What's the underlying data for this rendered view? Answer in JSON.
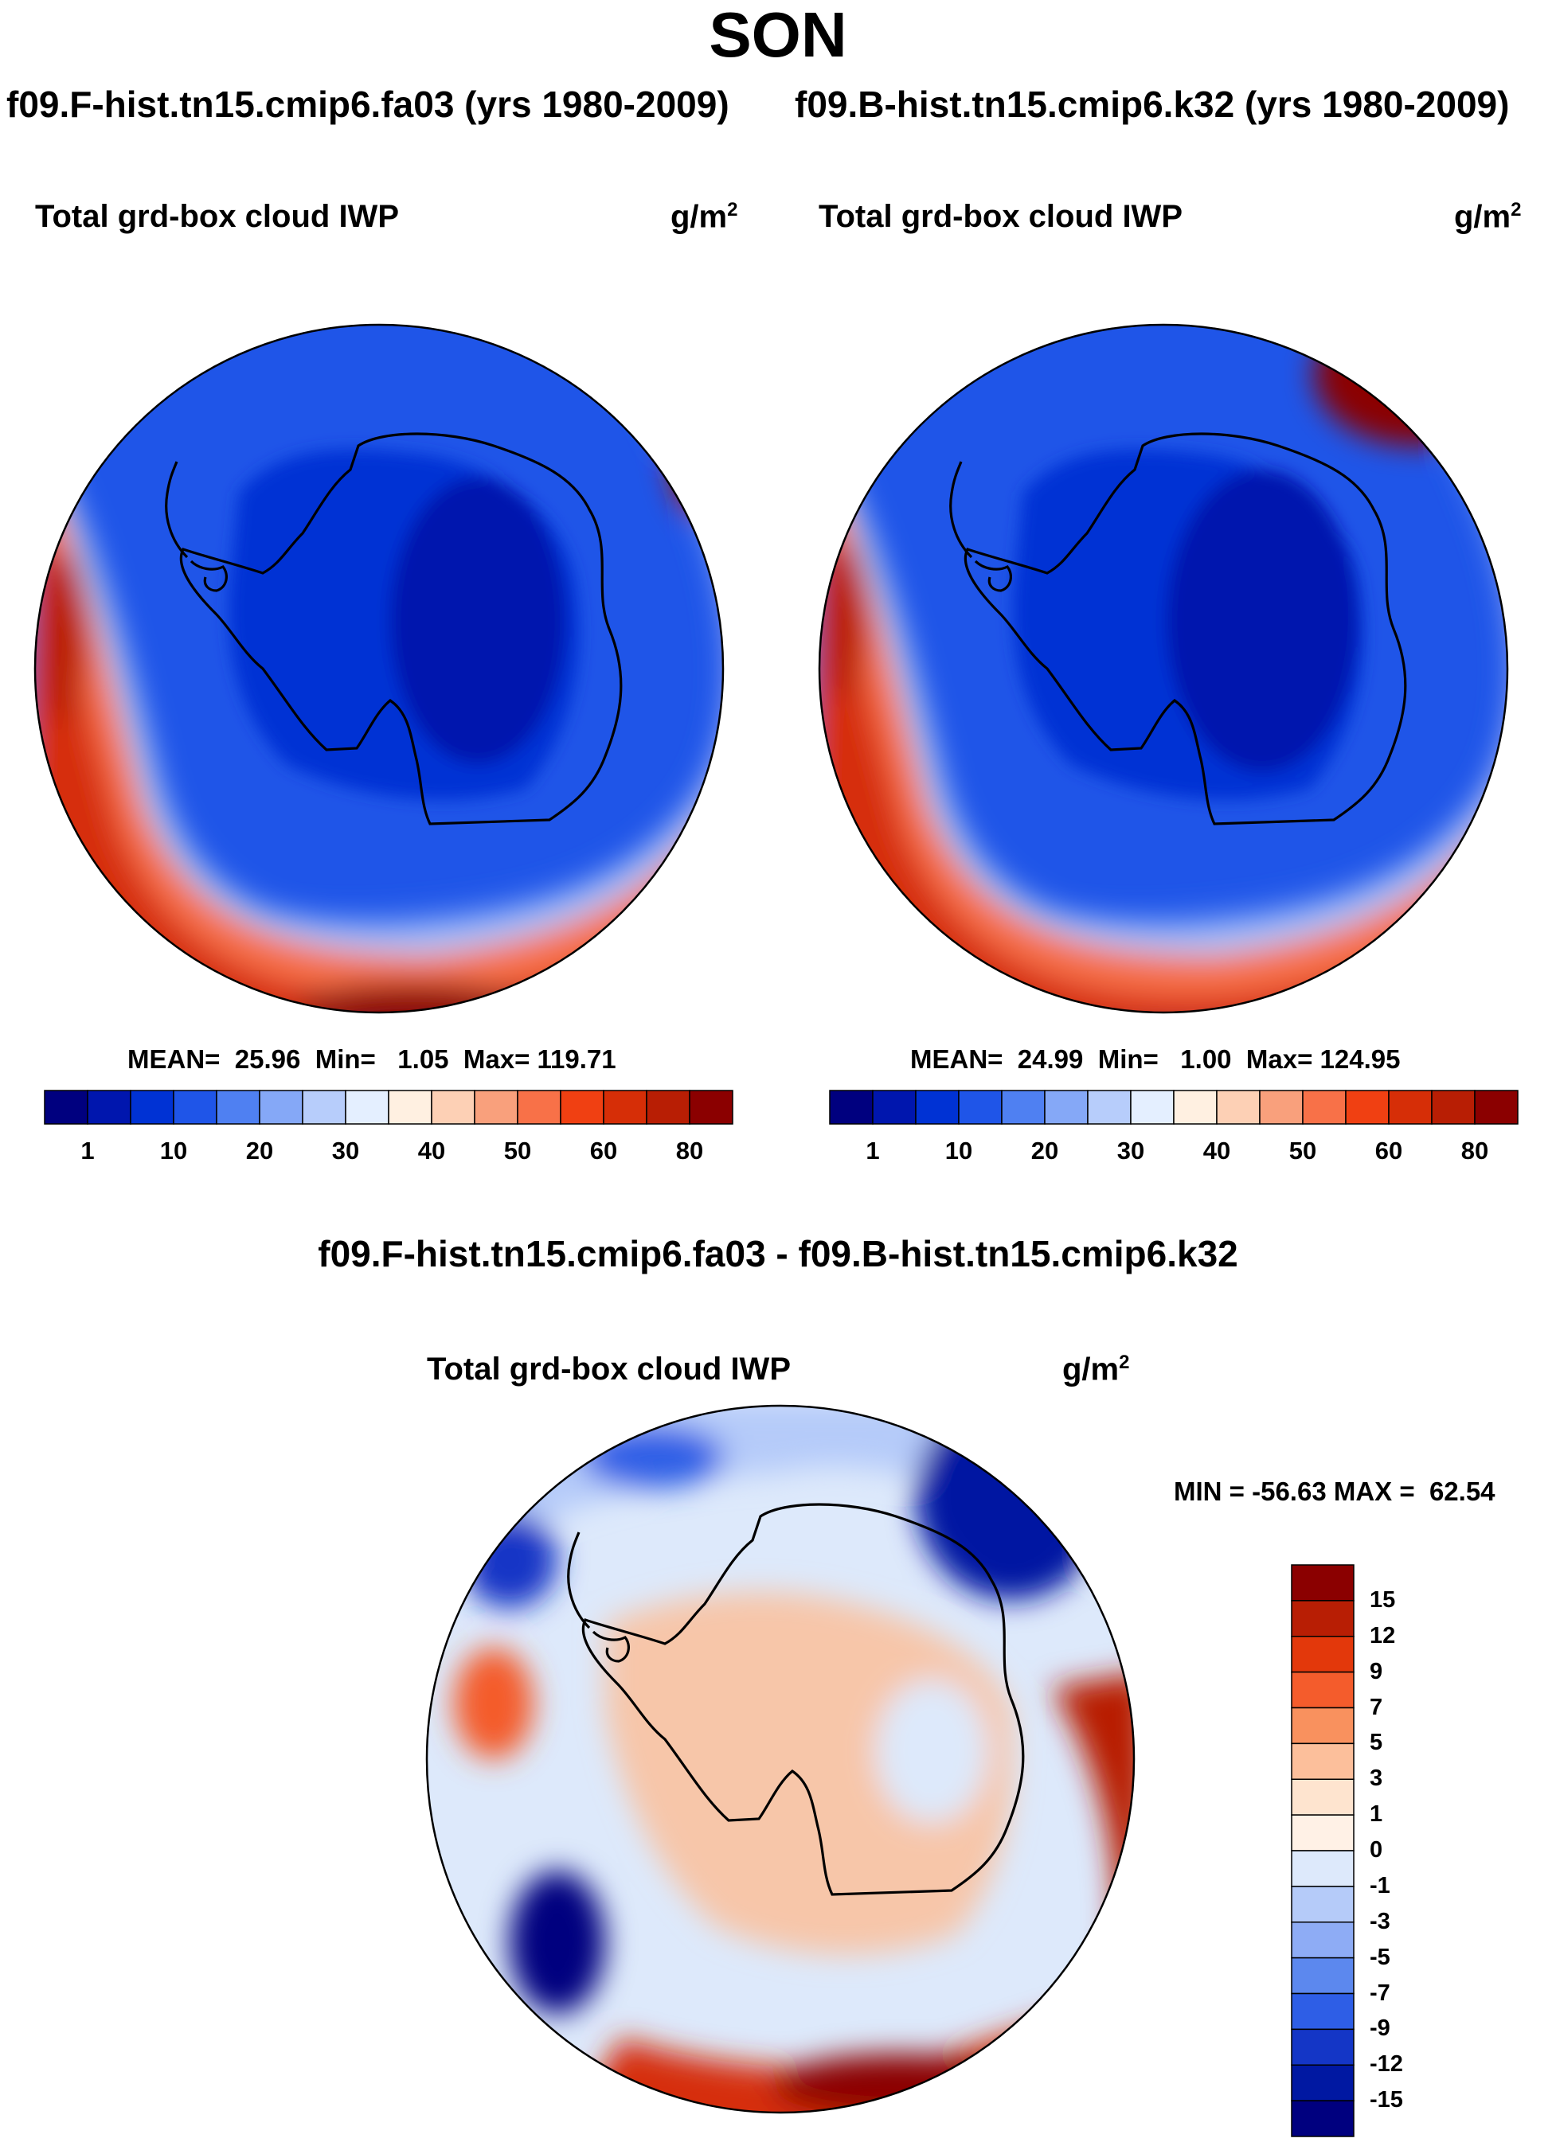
{
  "chart_data": [
    {
      "type": "heatmap",
      "panel": "left",
      "season": "SON",
      "case": "f09.F-hist.tn15.cmip6.fa03 (yrs 1980-2009)",
      "variable": "Total grd-box cloud IWP",
      "units": "g/m",
      "units_exp": "2",
      "stats": {
        "mean": "MEAN=  25.96",
        "min": "Min=   1.05",
        "max": "Max= 119.71"
      },
      "colorbar": {
        "orientation": "horizontal",
        "tick_labels": [
          "1",
          "10",
          "20",
          "30",
          "40",
          "50",
          "60",
          "80"
        ],
        "colors": [
          "#00007f",
          "#0016ae",
          "#0032d4",
          "#1f55e8",
          "#4f80f2",
          "#85a8f7",
          "#b7cdfb",
          "#e4efff",
          "#fff0e1",
          "#fdd0b5",
          "#f9a07c",
          "#f87148",
          "#f04012",
          "#d62e07",
          "#b81e04",
          "#8b0000"
        ]
      }
    },
    {
      "type": "heatmap",
      "panel": "right",
      "season": "SON",
      "case": "f09.B-hist.tn15.cmip6.k32 (yrs 1980-2009)",
      "variable": "Total grd-box cloud IWP",
      "units": "g/m",
      "units_exp": "2",
      "stats": {
        "mean": "MEAN=  24.99",
        "min": "Min=   1.00",
        "max": "Max= 124.95"
      },
      "colorbar": {
        "orientation": "horizontal",
        "tick_labels": [
          "1",
          "10",
          "20",
          "30",
          "40",
          "50",
          "60",
          "80"
        ],
        "colors": [
          "#00007f",
          "#0016ae",
          "#0032d4",
          "#1f55e8",
          "#4f80f2",
          "#85a8f7",
          "#b7cdfb",
          "#e4efff",
          "#fff0e1",
          "#fdd0b5",
          "#f9a07c",
          "#f87148",
          "#f04012",
          "#d62e07",
          "#b81e04",
          "#8b0000"
        ]
      }
    },
    {
      "type": "heatmap",
      "panel": "difference",
      "title": "f09.F-hist.tn15.cmip6.fa03 - f09.B-hist.tn15.cmip6.k32",
      "variable": "Total grd-box cloud IWP",
      "units": "g/m",
      "units_exp": "2",
      "stats": {
        "minmax": "MIN = -56.63 MAX =  62.54"
      },
      "colorbar": {
        "orientation": "vertical",
        "tick_labels_top_to_bottom": [
          "15",
          "12",
          "9",
          "7",
          "5",
          "3",
          "1",
          "0",
          "-1",
          "-3",
          "-5",
          "-7",
          "-9",
          "-12",
          "-15"
        ],
        "colors_top_to_bottom": [
          "#8b0000",
          "#b81e04",
          "#e3380b",
          "#f45c2c",
          "#f9915e",
          "#fcbf9b",
          "#fee4cf",
          "#fff1e6",
          "#dde9fb",
          "#b5cbf9",
          "#8eacf5",
          "#5c88ee",
          "#2e5ee6",
          "#1436c6",
          "#0018a2",
          "#00007f"
        ]
      }
    }
  ]
}
